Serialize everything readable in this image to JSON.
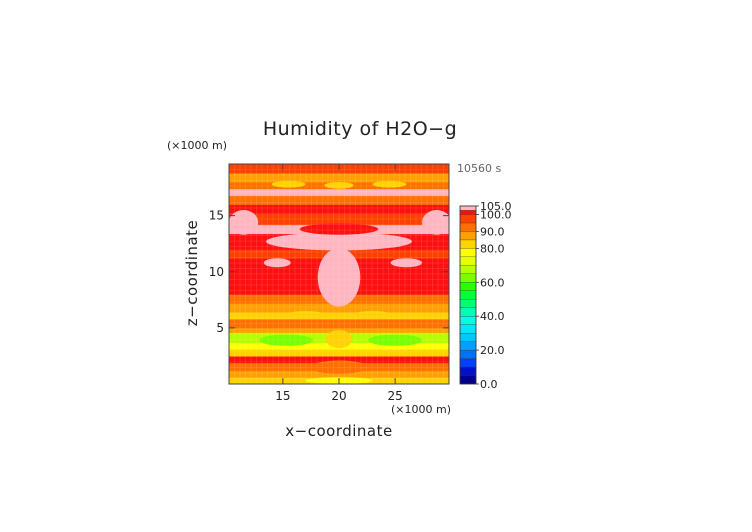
{
  "chart_data": {
    "type": "heatmap",
    "title": "Humidity of H2O−g",
    "time_label": "10560 s",
    "x_unit_label": "(×1000 m)",
    "y_unit_label": "(×1000 m)",
    "xlabel": "x−coordinate",
    "ylabel": "z−coordinate",
    "xlim": [
      10.2,
      29.8
    ],
    "ylim": [
      0,
      19.6
    ],
    "x_ticks": [
      15,
      20,
      25
    ],
    "y_ticks": [
      5,
      10,
      15
    ],
    "colorbar": {
      "min": 0,
      "max": 105,
      "tick_values": [
        105,
        100,
        90,
        80,
        60,
        40,
        20,
        0
      ],
      "tick_labels": [
        "105.0",
        "100.0",
        "90.0",
        "80.0",
        "60.0",
        "40.0",
        "20.0",
        "0.0"
      ],
      "levels": [
        {
          "from": 0,
          "to": 5,
          "color": "#00008c"
        },
        {
          "from": 5,
          "to": 10,
          "color": "#0010c8"
        },
        {
          "from": 10,
          "to": 15,
          "color": "#0040ff"
        },
        {
          "from": 15,
          "to": 20,
          "color": "#0070ff"
        },
        {
          "from": 20,
          "to": 25,
          "color": "#00a0ff"
        },
        {
          "from": 25,
          "to": 30,
          "color": "#00c8ff"
        },
        {
          "from": 30,
          "to": 35,
          "color": "#00e6ff"
        },
        {
          "from": 35,
          "to": 40,
          "color": "#00ffe6"
        },
        {
          "from": 40,
          "to": 45,
          "color": "#00ffb4"
        },
        {
          "from": 45,
          "to": 50,
          "color": "#00ff78"
        },
        {
          "from": 50,
          "to": 55,
          "color": "#00ff3c"
        },
        {
          "from": 55,
          "to": 60,
          "color": "#28ff00"
        },
        {
          "from": 60,
          "to": 65,
          "color": "#78ff00"
        },
        {
          "from": 65,
          "to": 70,
          "color": "#b4ff00"
        },
        {
          "from": 70,
          "to": 75,
          "color": "#e6ff00"
        },
        {
          "from": 75,
          "to": 80,
          "color": "#ffff00"
        },
        {
          "from": 80,
          "to": 85,
          "color": "#ffd200"
        },
        {
          "from": 85,
          "to": 90,
          "color": "#ffa000"
        },
        {
          "from": 90,
          "to": 95,
          "color": "#ff7000"
        },
        {
          "from": 95,
          "to": 100,
          "color": "#ff4000"
        },
        {
          "from": 100,
          "to": 102.5,
          "color": "#ff1010"
        },
        {
          "from": 102.5,
          "to": 105,
          "color": "#ffb6c1"
        }
      ]
    },
    "profile": {
      "note_units": "z in km (x1000 m), humidity in %",
      "horizontal_bands": [
        {
          "z_from": 0.0,
          "z_to": 0.6,
          "value": 80
        },
        {
          "z_from": 0.6,
          "z_to": 1.2,
          "value": 85
        },
        {
          "z_from": 1.2,
          "z_to": 1.9,
          "value": 90
        },
        {
          "z_from": 1.9,
          "z_to": 2.5,
          "value": 100
        },
        {
          "z_from": 2.5,
          "z_to": 3.1,
          "value": 82
        },
        {
          "z_from": 3.1,
          "z_to": 3.7,
          "value": 76
        },
        {
          "z_from": 3.7,
          "z_to": 4.6,
          "value": 68
        },
        {
          "z_from": 4.6,
          "z_to": 5.0,
          "value": 88
        },
        {
          "z_from": 5.0,
          "z_to": 5.8,
          "value": 93
        },
        {
          "z_from": 5.8,
          "z_to": 6.4,
          "value": 80
        },
        {
          "z_from": 6.4,
          "z_to": 7.2,
          "value": 87
        },
        {
          "z_from": 7.2,
          "z_to": 8.0,
          "value": 92
        },
        {
          "z_from": 8.0,
          "z_to": 9.6,
          "value": 100
        },
        {
          "z_from": 9.6,
          "z_to": 11.2,
          "value": 100
        },
        {
          "z_from": 11.2,
          "z_to": 12.0,
          "value": 97
        },
        {
          "z_from": 12.0,
          "z_to": 13.4,
          "value": 100
        },
        {
          "z_from": 13.4,
          "z_to": 14.2,
          "value": 104
        },
        {
          "z_from": 14.2,
          "z_to": 15.2,
          "value": 97
        },
        {
          "z_from": 15.2,
          "z_to": 16.0,
          "value": 100
        },
        {
          "z_from": 16.0,
          "z_to": 16.8,
          "value": 93
        },
        {
          "z_from": 16.8,
          "z_to": 17.4,
          "value": 104
        },
        {
          "z_from": 17.4,
          "z_to": 18.0,
          "value": 90
        },
        {
          "z_from": 18.0,
          "z_to": 18.8,
          "value": 86
        },
        {
          "z_from": 18.8,
          "z_to": 19.6,
          "value": 99
        }
      ],
      "patches": [
        {
          "x": 20.0,
          "z": 9.5,
          "rx": 1.9,
          "rz": 2.6,
          "value": 104
        },
        {
          "x": 20.0,
          "z": 12.7,
          "rx": 6.5,
          "rz": 0.8,
          "value": 104
        },
        {
          "x": 20.0,
          "z": 13.8,
          "rx": 3.5,
          "rz": 0.5,
          "value": 100
        },
        {
          "x": 14.5,
          "z": 10.8,
          "rx": 1.2,
          "rz": 0.4,
          "value": 104
        },
        {
          "x": 26.0,
          "z": 10.8,
          "rx": 1.4,
          "rz": 0.4,
          "value": 104
        },
        {
          "x": 11.5,
          "z": 14.4,
          "rx": 1.3,
          "rz": 1.1,
          "value": 104
        },
        {
          "x": 28.7,
          "z": 14.4,
          "rx": 1.3,
          "rz": 1.1,
          "value": 104
        },
        {
          "x": 15.5,
          "z": 17.8,
          "rx": 1.5,
          "rz": 0.3,
          "value": 83
        },
        {
          "x": 20.0,
          "z": 17.7,
          "rx": 1.3,
          "rz": 0.3,
          "value": 80
        },
        {
          "x": 24.5,
          "z": 17.8,
          "rx": 1.5,
          "rz": 0.3,
          "value": 83
        },
        {
          "x": 20.0,
          "z": 4.0,
          "rx": 1.2,
          "rz": 0.8,
          "value": 82
        },
        {
          "x": 15.3,
          "z": 3.9,
          "rx": 2.4,
          "rz": 0.5,
          "value": 64
        },
        {
          "x": 25.0,
          "z": 3.9,
          "rx": 2.4,
          "rz": 0.5,
          "value": 64
        },
        {
          "x": 17.0,
          "z": 6.2,
          "rx": 1.6,
          "rz": 0.3,
          "value": 80
        },
        {
          "x": 23.0,
          "z": 6.2,
          "rx": 1.6,
          "rz": 0.3,
          "value": 80
        },
        {
          "x": 20.0,
          "z": 1.5,
          "rx": 2.5,
          "rz": 0.6,
          "value": 92
        },
        {
          "x": 20.0,
          "z": 0.3,
          "rx": 3.0,
          "rz": 0.3,
          "value": 75
        }
      ]
    }
  }
}
